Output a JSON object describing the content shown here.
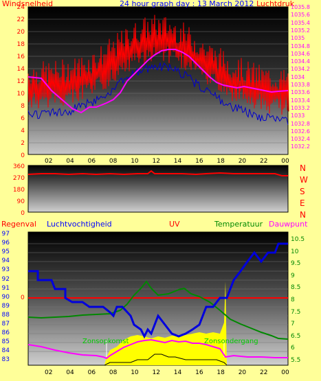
{
  "panel1": {
    "title": "24 hour graph day : 13 March 2012",
    "left_label": "Windsnelheid",
    "right_label": "Luchtdruk",
    "left_ticks": [
      "24",
      "22",
      "20",
      "18",
      "16",
      "14",
      "12",
      "10",
      "8",
      "6",
      "4",
      "2",
      "0"
    ],
    "right_ticks": [
      "1035.8",
      "1035.6",
      "1035.4",
      "1035.2",
      "1035",
      "1034.8",
      "1034.6",
      "1034.4",
      "1034.2",
      "1034",
      "1033.8",
      "1033.6",
      "1033.4",
      "1033.2",
      "1033",
      "1032.8",
      "1032.6",
      "1032.4",
      "1032.2"
    ],
    "x_ticks": [
      "02",
      "04",
      "06",
      "08",
      "10",
      "12",
      "14",
      "16",
      "18",
      "20",
      "22",
      "00"
    ]
  },
  "panel2": {
    "left_ticks": [
      "360",
      "270",
      "180",
      "90",
      "0"
    ],
    "compass": [
      "N",
      "W",
      "S",
      "E",
      "N"
    ]
  },
  "panel3": {
    "label_regen": "Regenval",
    "label_hum": "Luchtvochtigheid",
    "label_uv": "UV",
    "label_temp": "Temperatuur",
    "label_dew": "Dauwpunt",
    "left_ticks": [
      "97",
      "96",
      "95",
      "94",
      "93",
      "92",
      "91",
      "90",
      "89",
      "88",
      "87",
      "86",
      "85",
      "84",
      "83"
    ],
    "rain_tick": "0",
    "right_ticks": [
      "10.5",
      "10",
      "9.5",
      "9",
      "8.5",
      "8",
      "7.5",
      "7",
      "6.5",
      "6",
      "5.5"
    ],
    "sunrise": "Zonsopkomst",
    "sunset": "Zonsondergang",
    "x_ticks": [
      "02",
      "04",
      "06",
      "08",
      "10",
      "12",
      "14",
      "16",
      "18",
      "20",
      "22",
      "00"
    ]
  },
  "colors": {
    "background": "#ffff99",
    "wind_gust": "#ff0000",
    "wind_avg": "#0000cc",
    "pressure": "#ff00ff",
    "humidity": "#0000dd",
    "temperature": "#008800",
    "dewpoint": "#ff00ff",
    "uv": "#ffff00",
    "label_red": "#ff0000",
    "label_blue": "#0000ff",
    "label_green": "#008800",
    "label_magenta": "#ff00ff"
  }
}
